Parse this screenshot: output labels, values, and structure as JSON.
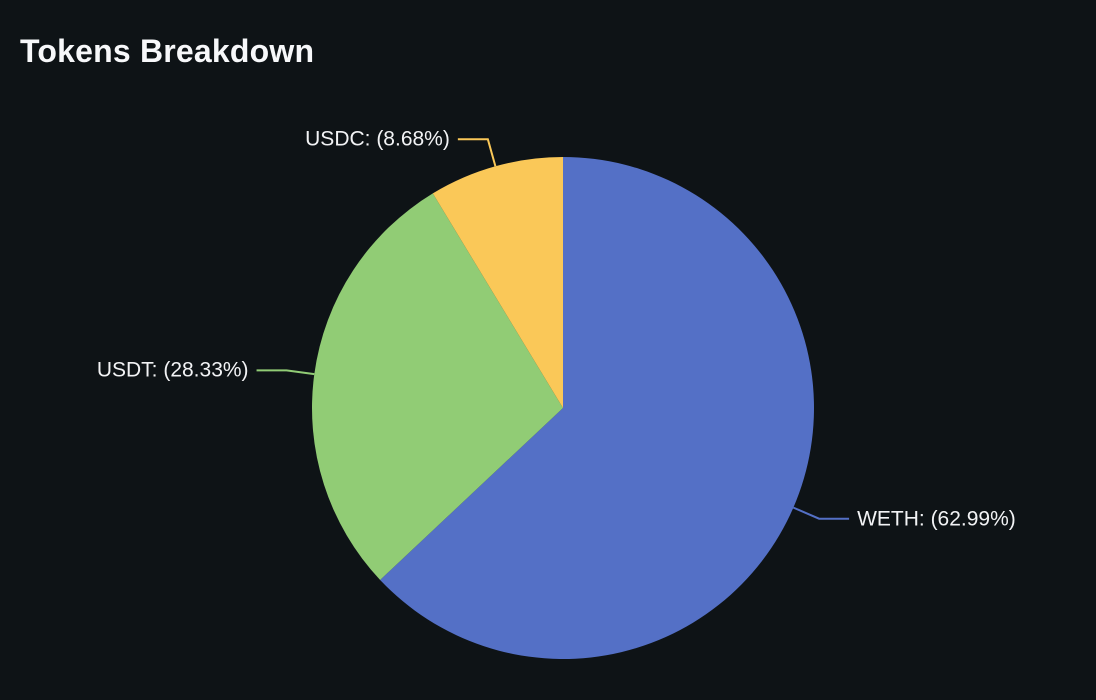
{
  "page": {
    "background": "#0e1316"
  },
  "chart_data": {
    "type": "pie",
    "title": "Tokens Breakdown",
    "unit": "%",
    "start_angle": "top",
    "direction": "clockwise",
    "label_position": "outside",
    "legend": "none",
    "background": "#0e1316",
    "title_color": "#f7f8fa",
    "label_color": "#f2f3f5",
    "series": [
      {
        "name": "WETH",
        "value": 62.99,
        "color": "#5470c6",
        "display_label": "WETH: (62.99%)"
      },
      {
        "name": "USDT",
        "value": 28.33,
        "color": "#91cc75",
        "display_label": "USDT: (28.33%)"
      },
      {
        "name": "USDC",
        "value": 8.68,
        "color": "#fac858",
        "display_label": "USDC: (8.68%)"
      }
    ]
  }
}
